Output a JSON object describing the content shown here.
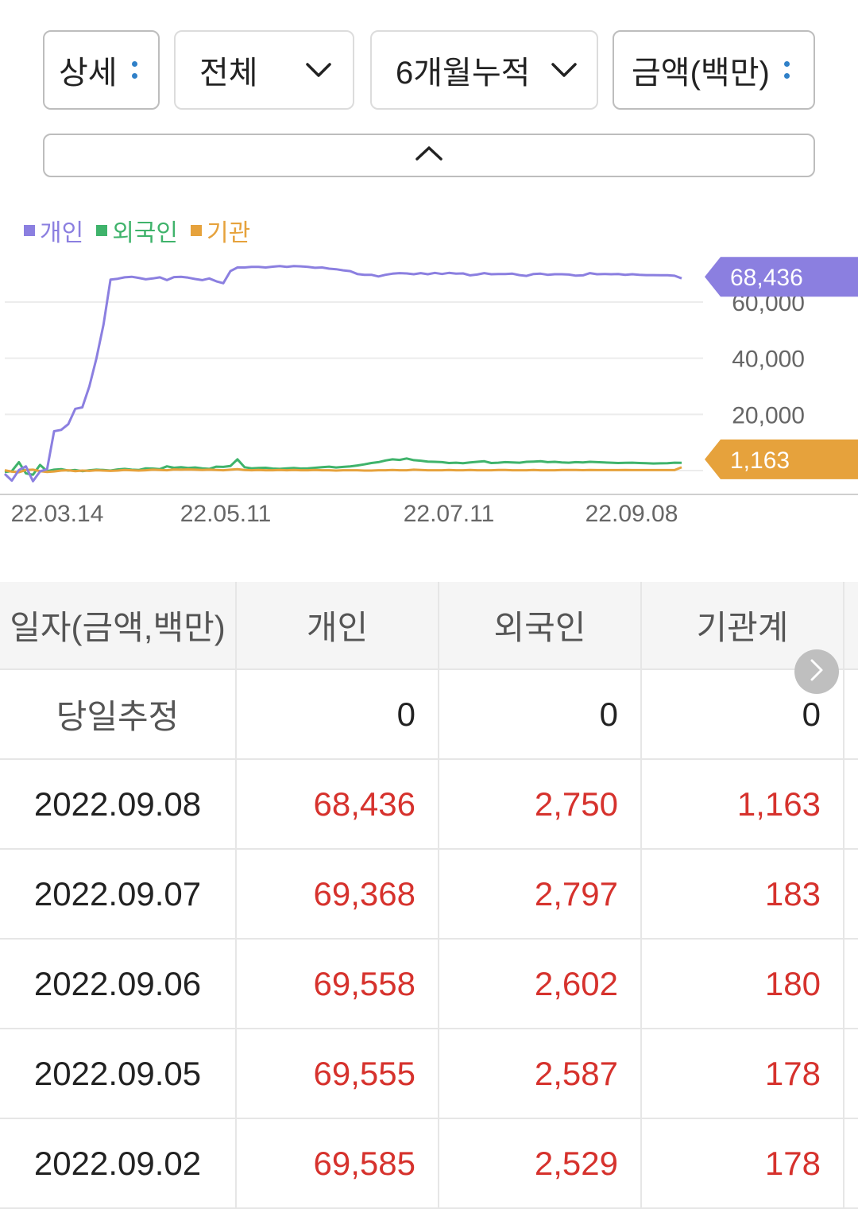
{
  "filters": {
    "detail": "상세",
    "market": "전체",
    "period": "6개월누적",
    "unit": "금액(백만)"
  },
  "legend": [
    {
      "label": "개인",
      "color": "#8b7fe0"
    },
    {
      "label": "외국인",
      "color": "#3fb36b"
    },
    {
      "label": "기관",
      "color": "#e6a23c"
    }
  ],
  "chart_data": {
    "type": "line",
    "x_ticks": [
      "22.03.14",
      "22.05.11",
      "22.07.11",
      "22.09.08"
    ],
    "y_ticks": [
      "20,000",
      "40,000",
      "60,000"
    ],
    "ylim": [
      -5000,
      75000
    ],
    "series": [
      {
        "name": "개인",
        "color": "#8b7fe0",
        "last_label": "68,436",
        "values": [
          -1200,
          -3600,
          200,
          1500,
          -3800,
          -300,
          500,
          14000,
          14500,
          16500,
          22000,
          22500,
          30000,
          40000,
          52000,
          68000,
          68300,
          68800,
          69000,
          68600,
          68100,
          68400,
          68800,
          67800,
          68900,
          69000,
          68700,
          68200,
          67800,
          68400,
          67400,
          66700,
          71000,
          72300,
          72300,
          72500,
          72500,
          72300,
          72600,
          72800,
          72500,
          72800,
          72700,
          72500,
          72200,
          72300,
          71900,
          71700,
          71300,
          71000,
          70000,
          69700,
          69700,
          69100,
          69700,
          70100,
          70300,
          70200,
          69900,
          70300,
          69900,
          70400,
          70000,
          70400,
          70100,
          70200,
          69500,
          69800,
          70300,
          69900,
          70000,
          70000,
          70100,
          69600,
          69300,
          70000,
          70100,
          69700,
          69900,
          69900,
          69800,
          69400,
          69500,
          70300,
          69900,
          70000,
          69900,
          70000,
          69700,
          69900,
          69700,
          69600,
          69585,
          69555,
          69558,
          69368,
          68436
        ]
      },
      {
        "name": "외국인",
        "color": "#3fb36b",
        "values": [
          -500,
          -200,
          3000,
          -1000,
          -1500,
          2000,
          -200,
          300,
          500,
          0,
          200,
          -200,
          100,
          300,
          200,
          0,
          400,
          600,
          300,
          200,
          800,
          700,
          500,
          1500,
          1000,
          1200,
          900,
          1100,
          800,
          600,
          1400,
          1300,
          1600,
          4000,
          1200,
          800,
          900,
          1000,
          700,
          600,
          800,
          900,
          700,
          800,
          1000,
          1200,
          1400,
          1100,
          1300,
          1500,
          1800,
          2200,
          2700,
          3000,
          3600,
          4000,
          3800,
          4300,
          3700,
          3500,
          3200,
          3100,
          3000,
          2700,
          2800,
          2600,
          2900,
          3100,
          3300,
          2700,
          2800,
          3000,
          2900,
          2800,
          3100,
          3200,
          3300,
          3000,
          3100,
          2900,
          2800,
          3000,
          2900,
          3100,
          3000,
          2900,
          2800,
          2700,
          2750,
          2800,
          2700,
          2600,
          2529,
          2587,
          2602,
          2797,
          2750
        ]
      },
      {
        "name": "기관",
        "color": "#e6a23c",
        "last_label": "1,163",
        "values": [
          100,
          -400,
          -600,
          200,
          300,
          -200,
          -500,
          -300,
          0,
          100,
          -200,
          0,
          -100,
          100,
          0,
          -100,
          0,
          200,
          100,
          0,
          100,
          300,
          200,
          100,
          400,
          300,
          400,
          300,
          200,
          300,
          200,
          100,
          300,
          500,
          200,
          100,
          200,
          100,
          100,
          200,
          100,
          200,
          100,
          100,
          200,
          100,
          100,
          0,
          100,
          100,
          100,
          0,
          0,
          100,
          100,
          200,
          100,
          100,
          300,
          200,
          100,
          100,
          100,
          200,
          100,
          100,
          200,
          100,
          100,
          100,
          200,
          200,
          100,
          100,
          100,
          200,
          100,
          100,
          100,
          200,
          200,
          200,
          150,
          200,
          180,
          170,
          180,
          180,
          190,
          178,
          180,
          178,
          178,
          178,
          180,
          183,
          1163
        ]
      }
    ]
  },
  "table": {
    "headers": [
      "일자(금액,백만)",
      "개인",
      "외국인",
      "기관계"
    ],
    "estimate": {
      "label": "당일추정",
      "values": [
        "0",
        "0",
        "0"
      ]
    },
    "rows": [
      {
        "date": "2022.09.08",
        "values": [
          "68,436",
          "2,750",
          "1,163"
        ]
      },
      {
        "date": "2022.09.07",
        "values": [
          "69,368",
          "2,797",
          "183"
        ]
      },
      {
        "date": "2022.09.06",
        "values": [
          "69,558",
          "2,602",
          "180"
        ]
      },
      {
        "date": "2022.09.05",
        "values": [
          "69,555",
          "2,587",
          "178"
        ]
      },
      {
        "date": "2022.09.02",
        "values": [
          "69,585",
          "2,529",
          "178"
        ]
      }
    ]
  }
}
